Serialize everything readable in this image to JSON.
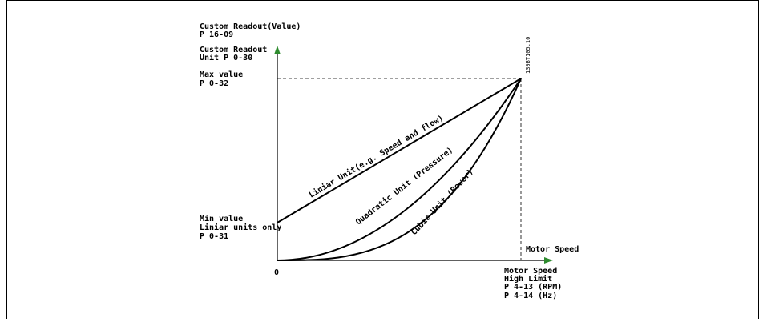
{
  "y_axis": {
    "title_lines": [
      "Custom Readout(Value)",
      "P 16-09",
      "Custom Readout",
      "Unit P 0-30"
    ],
    "max_lines": [
      "Max value",
      "P 0-32"
    ],
    "min_lines": [
      "Min value",
      "Liniar units only",
      "P 0-31"
    ]
  },
  "x_axis": {
    "label": "Motor Speed",
    "origin": "0",
    "limit_lines": [
      "Motor Speed",
      "High Limit",
      "P 4-13 (RPM)",
      "P 4-14 (Hz)"
    ]
  },
  "curves": {
    "linear": "Liniar Unit(e.g. Speed and flow)",
    "quadratic": "Quadratic Unit (Pressure)",
    "cubic": "Cubic Unit (Power)"
  },
  "figure_ref": "130BT105.10",
  "colors": {
    "axis_arrow": "#2e8b2e",
    "line": "#000000"
  }
}
